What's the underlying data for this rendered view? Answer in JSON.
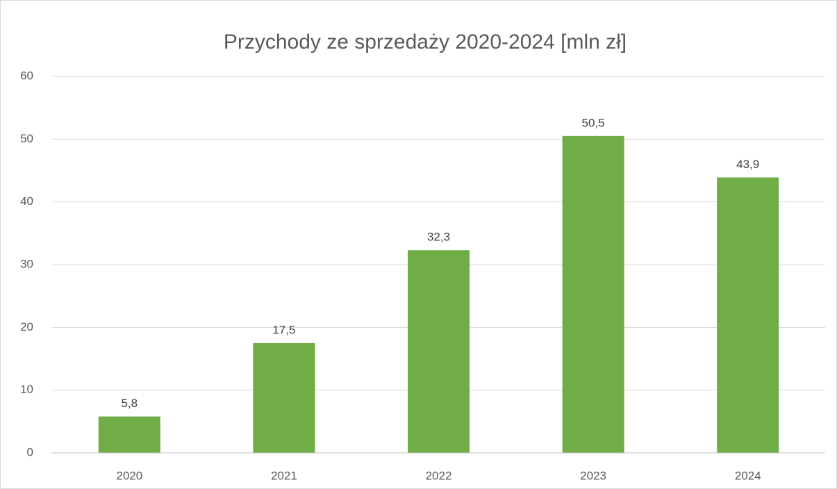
{
  "chart_data": {
    "type": "bar",
    "title": "Przychody ze sprzedaży 2020-2024 [mln zł]",
    "categories": [
      "2020",
      "2021",
      "2022",
      "2023",
      "2024"
    ],
    "values": [
      5.8,
      17.5,
      32.3,
      50.5,
      43.9
    ],
    "value_labels": [
      "5,8",
      "17,5",
      "32,3",
      "50,5",
      "43,9"
    ],
    "color": "#70ad47",
    "ylim": [
      0,
      60
    ],
    "yticks": [
      0,
      10,
      20,
      30,
      40,
      50,
      60
    ],
    "grid": true
  }
}
